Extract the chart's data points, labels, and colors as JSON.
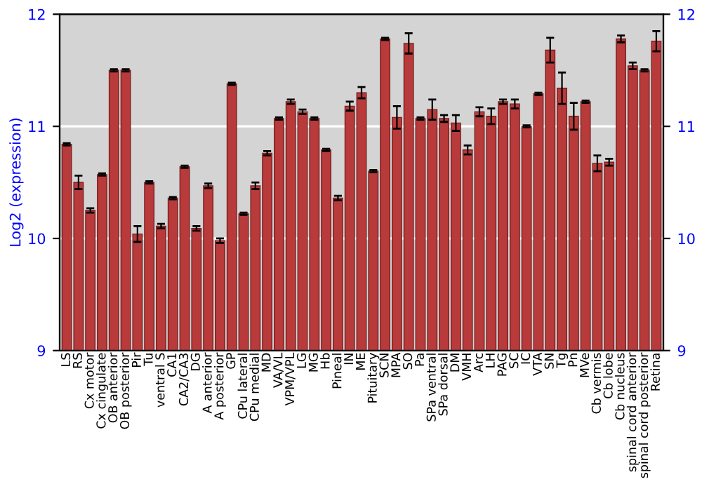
{
  "chart_data": {
    "type": "bar",
    "ylabel": "Log2 (expression)",
    "categories": [
      "LS",
      "RS",
      "Cx motor",
      "Cx cingulate",
      "OB anterior",
      "OB posterior",
      "Pir",
      "Tu",
      "ventral S",
      "CA1",
      "CA2/CA3",
      "DG",
      "A anterior",
      "A posterior",
      "GP",
      "CPu lateral",
      "CPu medial",
      "MD",
      "VA/VL",
      "VPM/VPL",
      "LG",
      "MG",
      "Hb",
      "Pineal",
      "IN",
      "ME",
      "Pituitary",
      "SCN",
      "MPA",
      "SO",
      "Pa",
      "SPa ventral",
      "SPa dorsal",
      "DM",
      "VMH",
      "Arc",
      "LH",
      "PAG",
      "SC",
      "IC",
      "VTA",
      "SN",
      "Tg",
      "Pn",
      "MVe",
      "Cb vermis",
      "Cb lobe",
      "Cb nucleus",
      "spinal cord anterior",
      "spinal cord posterior",
      "Retina"
    ],
    "values": [
      10.84,
      10.5,
      10.25,
      10.57,
      11.5,
      11.5,
      10.04,
      10.5,
      10.11,
      10.36,
      10.64,
      10.09,
      10.47,
      9.98,
      11.38,
      10.22,
      10.47,
      10.76,
      11.07,
      11.22,
      11.13,
      11.07,
      10.79,
      10.36,
      11.18,
      11.3,
      10.6,
      11.78,
      11.08,
      11.74,
      11.07,
      11.15,
      11.07,
      11.03,
      10.79,
      11.13,
      11.09,
      11.22,
      11.2,
      11.0,
      11.29,
      11.68,
      11.34,
      11.09,
      11.22,
      10.67,
      10.68,
      11.78,
      11.54,
      11.5,
      11.76
    ],
    "errors": [
      0.01,
      0.06,
      0.02,
      0.01,
      0.01,
      0.01,
      0.07,
      0.01,
      0.02,
      0.01,
      0.01,
      0.02,
      0.02,
      0.02,
      0.01,
      0.01,
      0.03,
      0.02,
      0.01,
      0.02,
      0.02,
      0.01,
      0.01,
      0.02,
      0.04,
      0.05,
      0.01,
      0.01,
      0.1,
      0.09,
      0.01,
      0.09,
      0.03,
      0.07,
      0.04,
      0.04,
      0.07,
      0.02,
      0.04,
      0.01,
      0.01,
      0.11,
      0.14,
      0.12,
      0.01,
      0.07,
      0.03,
      0.03,
      0.03,
      0.01,
      0.09
    ],
    "color": "#b83a3a",
    "ylim": [
      9,
      12
    ],
    "yticks": [
      9,
      10,
      11,
      12
    ],
    "y2lim": [
      9,
      12
    ],
    "y2ticks": [
      9,
      10,
      11,
      12
    ],
    "grid": "y"
  }
}
